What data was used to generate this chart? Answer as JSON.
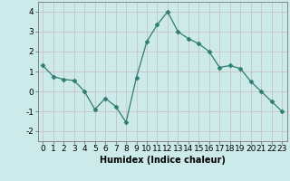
{
  "x": [
    0,
    1,
    2,
    3,
    4,
    5,
    6,
    7,
    8,
    9,
    10,
    11,
    12,
    13,
    14,
    15,
    16,
    17,
    18,
    19,
    20,
    21,
    22,
    23
  ],
  "y": [
    1.3,
    0.75,
    0.6,
    0.55,
    0.0,
    -0.9,
    -0.35,
    -0.75,
    -1.55,
    0.7,
    2.5,
    3.35,
    4.0,
    3.0,
    2.65,
    2.4,
    2.0,
    1.2,
    1.3,
    1.15,
    0.5,
    0.0,
    -0.5,
    -1.0
  ],
  "title": "",
  "xlabel": "Humidex (Indice chaleur)",
  "ylabel": "",
  "xlim": [
    -0.5,
    23.5
  ],
  "ylim": [
    -2.5,
    4.5
  ],
  "yticks": [
    -2,
    -1,
    0,
    1,
    2,
    3,
    4
  ],
  "xticks": [
    0,
    1,
    2,
    3,
    4,
    5,
    6,
    7,
    8,
    9,
    10,
    11,
    12,
    13,
    14,
    15,
    16,
    17,
    18,
    19,
    20,
    21,
    22,
    23
  ],
  "line_color": "#2e7d6e",
  "marker": "D",
  "marker_size": 2.5,
  "bg_color": "#cceaea",
  "grid_color": "#c8b8b8",
  "axes_bg": "#cceaea",
  "xlabel_fontsize": 7,
  "tick_fontsize": 6.5
}
